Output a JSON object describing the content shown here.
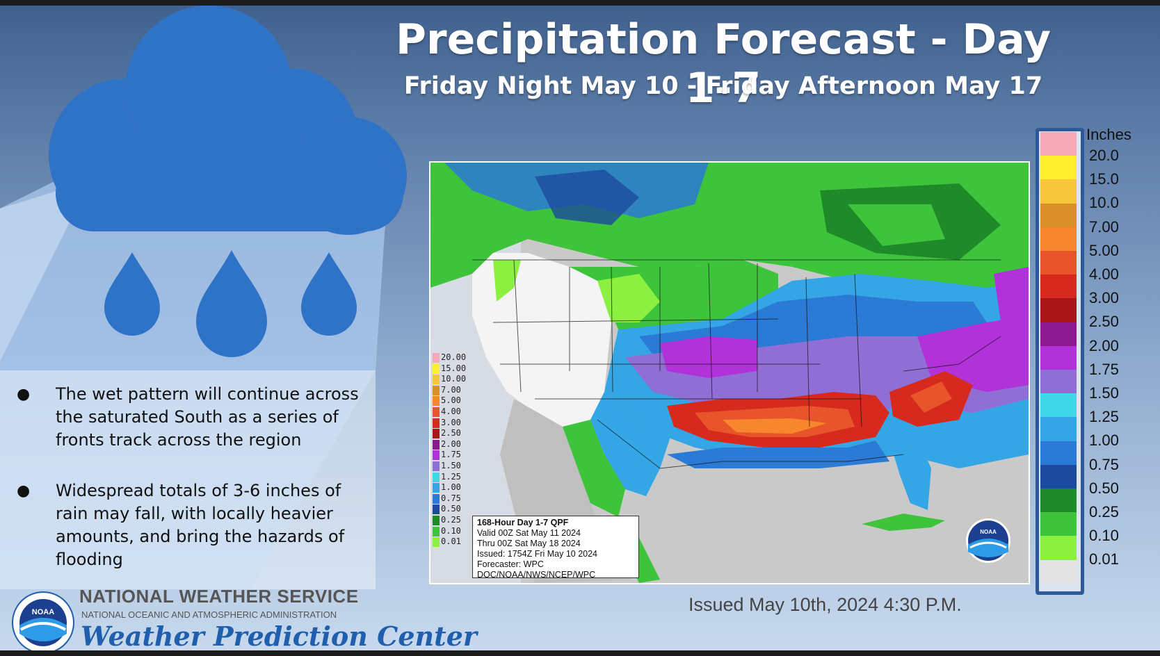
{
  "header": {
    "title": "Precipitation Forecast - Day 1-7",
    "subtitle": "Friday Night May 10 - Friday Afternoon May 17"
  },
  "bullets": [
    "The wet pattern will continue across the saturated South as a series of fronts track across the region",
    "Widespread totals of 3-6 inches of rain may fall, with locally heavier amounts, and bring the hazards of flooding"
  ],
  "bullet_marker": "●",
  "map": {
    "inset_legend": [
      "20.00",
      "15.00",
      "10.00",
      "7.00",
      "5.00",
      "4.00",
      "3.00",
      "2.50",
      "2.00",
      "1.75",
      "1.50",
      "1.25",
      "1.00",
      "0.75",
      "0.50",
      "0.25",
      "0.10",
      "0.01"
    ],
    "info_box": {
      "line1": "168-Hour Day 1-7 QPF",
      "line2": "Valid 00Z Sat May 11 2024",
      "line3": "Thru 00Z Sat May 18 2024",
      "line4": "Issued: 1754Z Fri May 10 2024",
      "line5": "Forecaster: WPC",
      "line6": "DOC/NOAA/NWS/NCEP/WPC"
    },
    "noaa_badge": "NOAA"
  },
  "legend": {
    "unit": "Inches",
    "items": [
      {
        "label": "20.0",
        "color": "#f6a8b8"
      },
      {
        "label": "15.0",
        "color": "#ffee2c"
      },
      {
        "label": "10.0",
        "color": "#f7c63a"
      },
      {
        "label": "7.00",
        "color": "#d99029"
      },
      {
        "label": "5.00",
        "color": "#f7862d"
      },
      {
        "label": "4.00",
        "color": "#e8552a"
      },
      {
        "label": "3.00",
        "color": "#d62a1e"
      },
      {
        "label": "2.50",
        "color": "#a8161a"
      },
      {
        "label": "2.00",
        "color": "#8c1a8e"
      },
      {
        "label": "1.75",
        "color": "#b232d9"
      },
      {
        "label": "1.50",
        "color": "#8f6fd6"
      },
      {
        "label": "1.25",
        "color": "#3fd8e6"
      },
      {
        "label": "1.00",
        "color": "#34a6e6"
      },
      {
        "label": "0.75",
        "color": "#2b7ad6"
      },
      {
        "label": "0.50",
        "color": "#1d4a9c"
      },
      {
        "label": "0.25",
        "color": "#1e8a2a"
      },
      {
        "label": "0.10",
        "color": "#3ec43a"
      },
      {
        "label": "0.01",
        "color": "#8cf040"
      },
      {
        "label": "",
        "color": "#e4e4e4"
      }
    ]
  },
  "footer": {
    "issued": "Issued May 10th, 2024 4:30 P.M.",
    "agency": "NATIONAL WEATHER SERVICE",
    "noaa_full": "NATIONAL OCEANIC AND ATMOSPHERIC ADMINISTRATION",
    "center": "Weather Prediction Center",
    "logo_text": "NOAA"
  },
  "colors": {
    "cloud": "#2f73c6",
    "light_blue_panel": "#bcd6f3",
    "ocean": "#c9c9c9",
    "brand_blue": "#1f5fae"
  }
}
